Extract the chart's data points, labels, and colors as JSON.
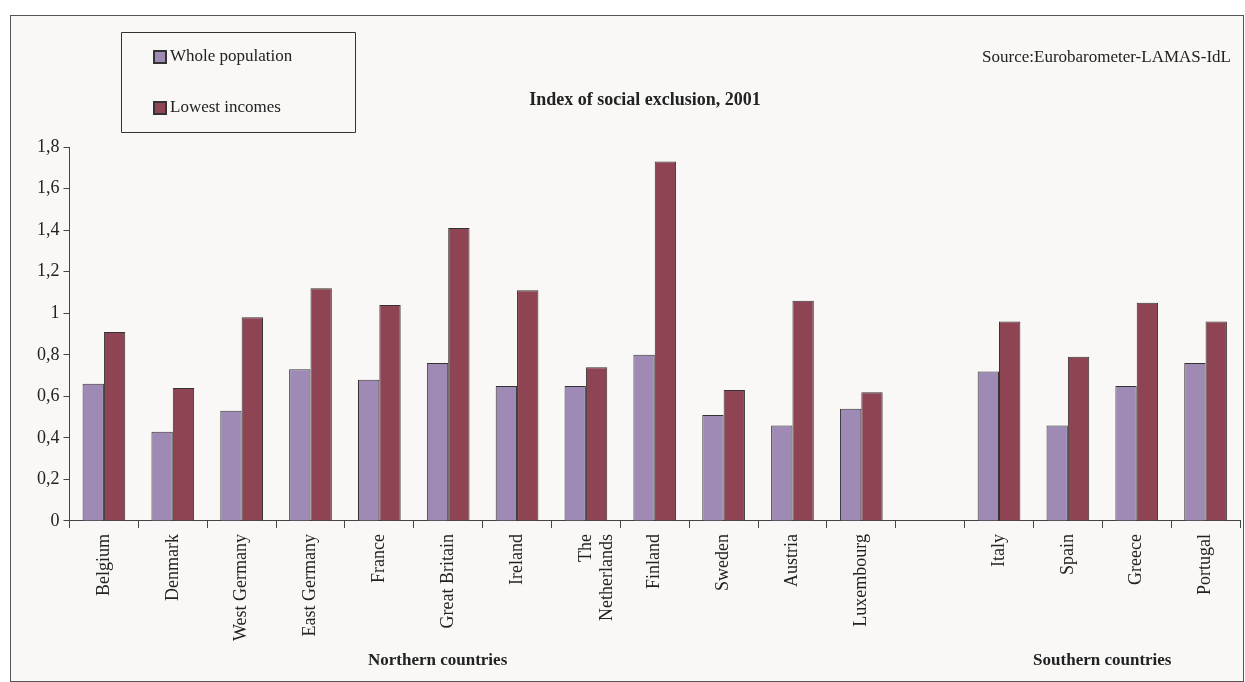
{
  "chart_data": {
    "type": "bar",
    "title": "Index of social exclusion, 2001",
    "categories": [
      "Belgium",
      "Denmark",
      "West Germany",
      "East Germany",
      "France",
      "Great Britain",
      "Ireland",
      "The Netherlands",
      "Finland",
      "Sweden",
      "Austria",
      "Luxembourg",
      null,
      "Italy",
      "Spain",
      "Greece",
      "Portugal"
    ],
    "series": [
      {
        "name": "Whole population",
        "color": "#9e8ab4",
        "values": [
          0.66,
          0.43,
          0.53,
          0.73,
          0.68,
          0.76,
          0.65,
          0.65,
          0.8,
          0.51,
          0.46,
          0.54,
          null,
          0.72,
          0.46,
          0.65,
          0.76
        ]
      },
      {
        "name": "Lowest incomes",
        "color": "#8e4453",
        "values": [
          0.91,
          0.64,
          0.98,
          1.12,
          1.04,
          1.41,
          1.11,
          0.74,
          1.73,
          0.63,
          1.06,
          0.62,
          null,
          0.96,
          0.79,
          1.05,
          0.96
        ]
      }
    ],
    "ylim": [
      0,
      1.8
    ],
    "yticks": [
      0,
      {
        "value": 0.2,
        "label": "0,2"
      },
      {
        "value": 0.4,
        "label": "0,4"
      },
      {
        "value": 0.6,
        "label": "0,6"
      },
      {
        "value": 0.8,
        "label": "0,8"
      },
      1,
      {
        "value": 1.2,
        "label": "1,2"
      },
      {
        "value": 1.4,
        "label": "1,4"
      },
      {
        "value": 1.6,
        "label": "1,6"
      },
      {
        "value": 1.8,
        "label": "1,8"
      }
    ],
    "annotations": [
      "Source:Eurobarometer-LAMAS-IdL",
      "Northern countries",
      "Southern countries"
    ],
    "grid": false,
    "legend": "top left"
  }
}
